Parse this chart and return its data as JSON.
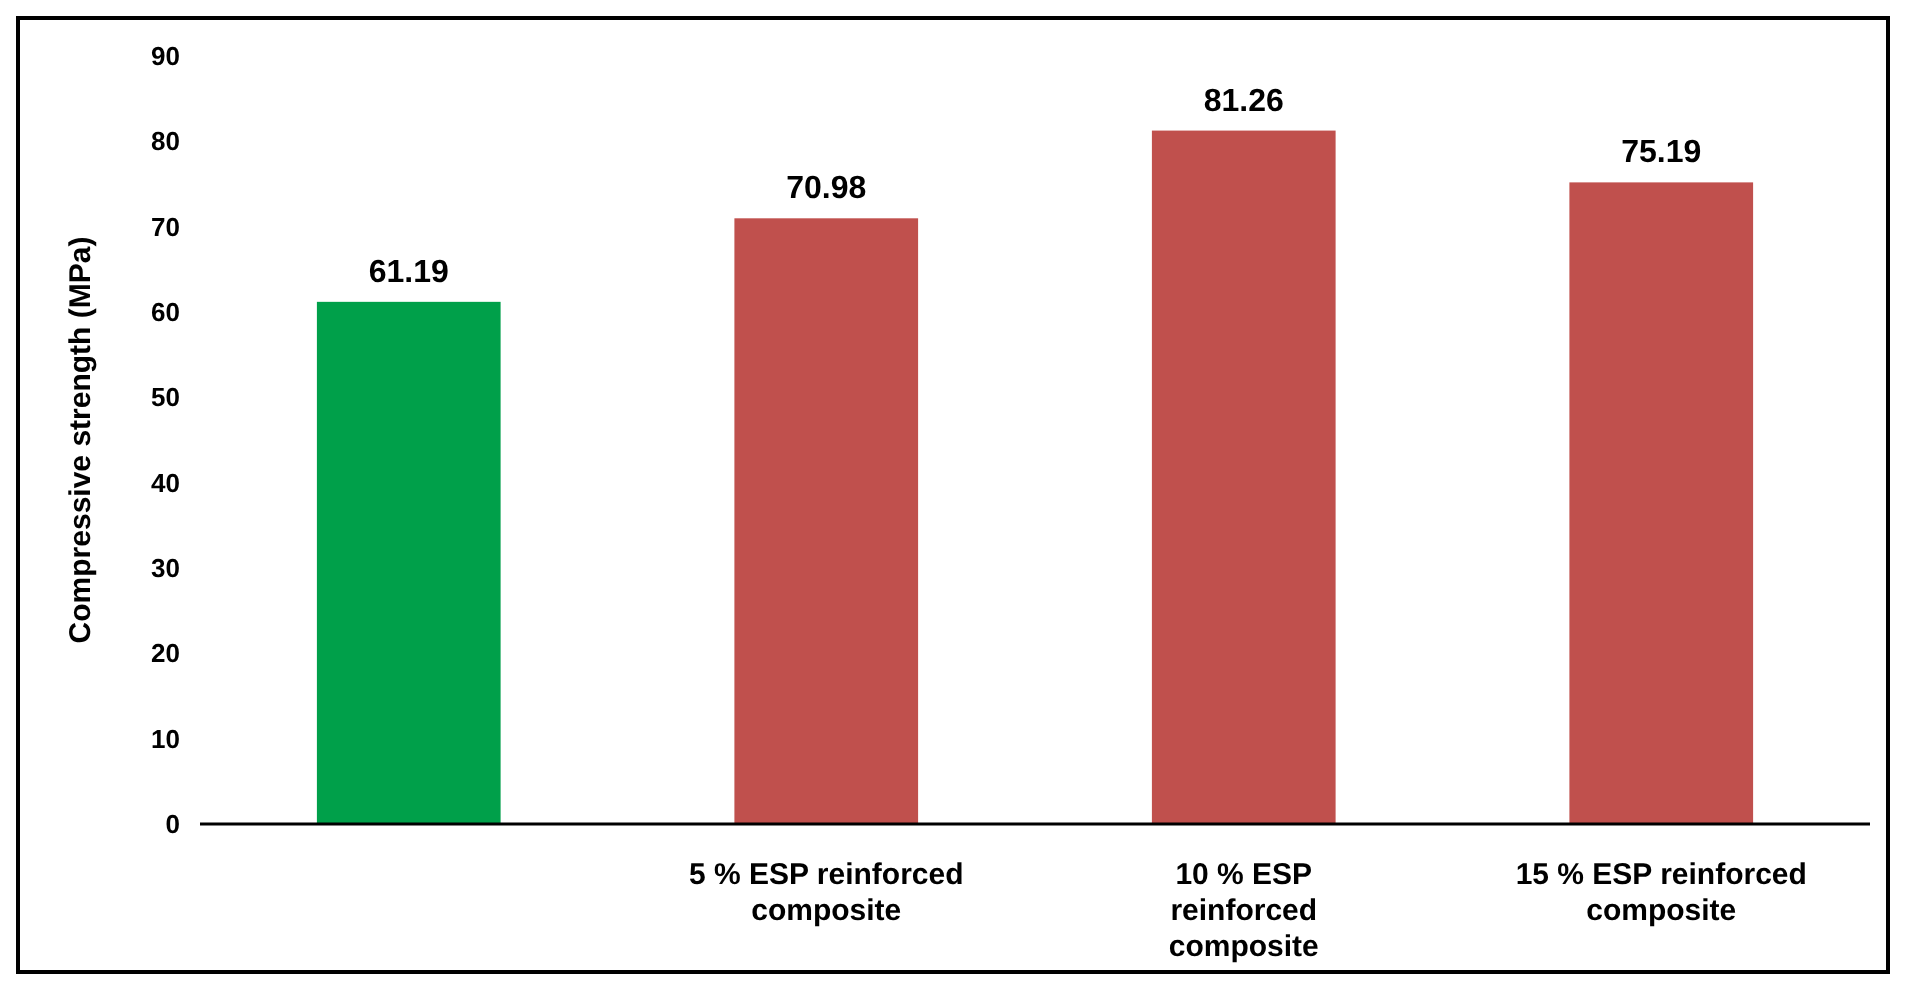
{
  "chart_data": {
    "type": "bar",
    "ylabel": "Compressive strength (MPa)",
    "categories": [
      null,
      "5 % ESP reinforced composite",
      "10 % ESP reinforced composite",
      "15 % ESP reinforced composite"
    ],
    "values": [
      61.19,
      70.98,
      81.26,
      75.19
    ],
    "colors": [
      "#00a04a",
      "#c0504d",
      "#c0504d",
      "#c0504d"
    ],
    "ylim": [
      0,
      90
    ],
    "yticks": [
      0,
      10,
      20,
      30,
      40,
      50,
      60,
      70,
      80,
      90
    ],
    "data_labels": true
  }
}
